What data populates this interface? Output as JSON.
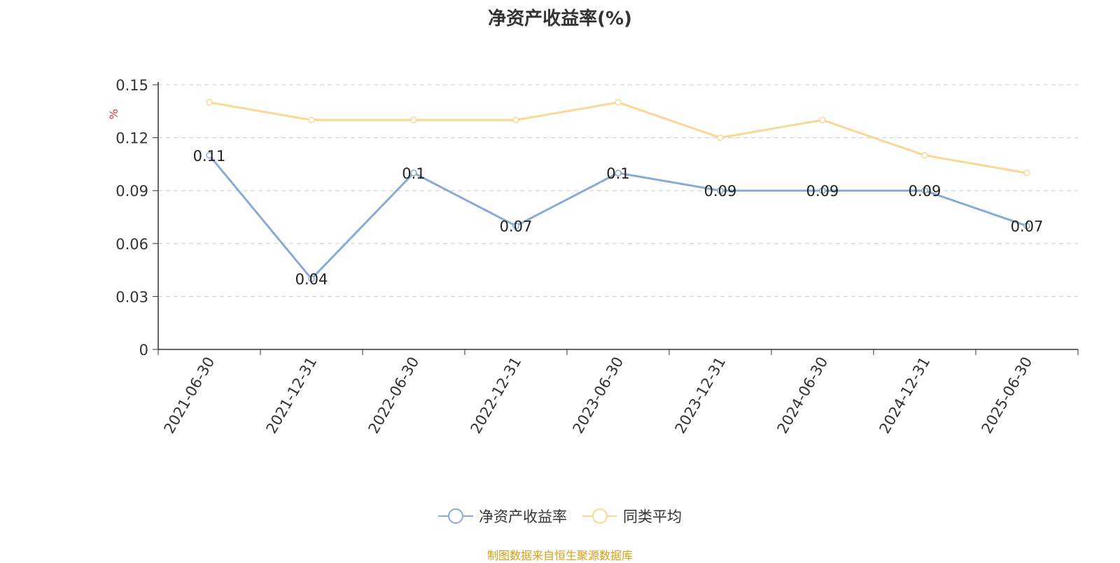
{
  "chart_data": {
    "type": "line",
    "title": "净资产收益率(%)",
    "ylabel": "%",
    "xlabel": "",
    "categories": [
      "2021-06-30",
      "2021-12-31",
      "2022-06-30",
      "2022-12-31",
      "2023-06-30",
      "2023-12-31",
      "2024-06-30",
      "2024-12-31",
      "2025-06-30"
    ],
    "series": [
      {
        "name": "净资产收益率",
        "values": [
          0.11,
          0.04,
          0.1,
          0.07,
          0.1,
          0.09,
          0.09,
          0.09,
          0.07
        ],
        "color": "#8aaad6",
        "data_labels": true
      },
      {
        "name": "同类平均",
        "values": [
          0.14,
          0.13,
          0.13,
          0.13,
          0.14,
          0.12,
          0.13,
          0.11,
          0.1
        ],
        "color": "#fad795",
        "data_labels": false
      }
    ],
    "ylim": [
      0,
      0.15
    ],
    "yticks": [
      "0",
      "0.03",
      "0.06",
      "0.09",
      "0.12",
      "0.15"
    ],
    "ytick_values": [
      0,
      0.03,
      0.06,
      0.09,
      0.12,
      0.15
    ],
    "grid": true,
    "legend_position": "bottom-center"
  },
  "source": "制图数据来自恒生聚源数据库"
}
